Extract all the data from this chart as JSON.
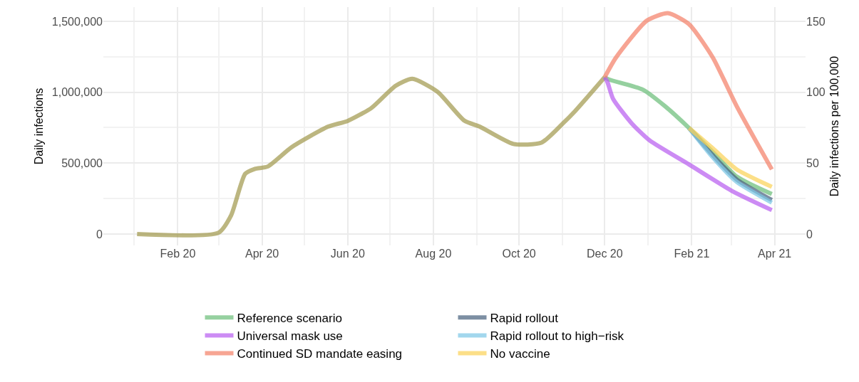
{
  "chart_data": {
    "type": "line",
    "ylabel": "Daily infections",
    "y2label": "Daily infections per 100,000",
    "xlim": [
      "2019-12-10",
      "2021-04-23"
    ],
    "xticks": [
      {
        "value": "2020-02-01",
        "label": "Feb 20"
      },
      {
        "value": "2020-04-01",
        "label": "Apr 20"
      },
      {
        "value": "2020-06-01",
        "label": "Jun 20"
      },
      {
        "value": "2020-08-01",
        "label": "Aug 20"
      },
      {
        "value": "2020-10-01",
        "label": "Oct 20"
      },
      {
        "value": "2020-12-01",
        "label": "Dec 20"
      },
      {
        "value": "2021-02-01",
        "label": "Feb 21"
      },
      {
        "value": "2021-04-01",
        "label": "Apr 21"
      }
    ],
    "ylim": [
      -80000,
      1600000
    ],
    "yticks": [
      {
        "value": 0,
        "label": "0"
      },
      {
        "value": 500000,
        "label": "500,000"
      },
      {
        "value": 1000000,
        "label": "1,000,000"
      },
      {
        "value": 1500000,
        "label": "1,500,000"
      }
    ],
    "y2lim": [
      -8,
      160
    ],
    "y2ticks": [
      0,
      50,
      100,
      150
    ],
    "grid": true,
    "legend": "bottom",
    "line_style": "solid",
    "marker": "none",
    "series": [
      {
        "color": "#a39a50",
        "x": [
          "2020-01-03",
          "2020-03-01",
          "2020-03-10",
          "2020-03-20",
          "2020-03-27",
          "2020-04-05",
          "2020-04-22",
          "2020-05-18",
          "2020-06-01",
          "2020-06-18",
          "2020-07-05",
          "2020-07-17",
          "2020-08-04",
          "2020-08-23",
          "2020-09-03",
          "2020-09-27",
          "2020-10-17",
          "2020-11-01",
          "2020-11-10",
          "2020-12-01"
        ],
        "values": [
          0,
          10000,
          133000,
          425000,
          460000,
          476000,
          612000,
          757000,
          798000,
          890000,
          1045000,
          1095000,
          1003000,
          800000,
          757000,
          635000,
          645000,
          778000,
          868000,
          1106000
        ]
      },
      {
        "name": "Reference scenario",
        "color": "#6dbf7b",
        "x": [
          "2020-12-01",
          "2020-12-04",
          "2020-12-28",
          "2021-01-13",
          "2021-01-30",
          "2021-02-16",
          "2021-03-05",
          "2021-03-30"
        ],
        "values": [
          1106000,
          1090000,
          1019000,
          901000,
          748000,
          578000,
          405000,
          282000
        ]
      },
      {
        "name": "Universal mask use",
        "color": "#b95ff0",
        "x": [
          "2020-12-01",
          "2020-12-03",
          "2020-12-07",
          "2020-12-20",
          "2021-01-02",
          "2021-01-30",
          "2021-03-02",
          "2021-03-30"
        ],
        "values": [
          1106000,
          1070000,
          952000,
          783000,
          660000,
          491000,
          302000,
          169000
        ]
      },
      {
        "name": "Continued SD mandate easing",
        "color": "#f4826a",
        "x": [
          "2020-12-01",
          "2020-12-09",
          "2020-12-31",
          "2021-01-15",
          "2021-01-30",
          "2021-02-16",
          "2021-03-05",
          "2021-03-30"
        ],
        "values": [
          1106000,
          1244000,
          1505000,
          1557000,
          1480000,
          1244000,
          901000,
          456000
        ]
      },
      {
        "name": "Rapid rollout",
        "color": "#4b6480",
        "x": [
          "2021-01-30",
          "2021-02-16",
          "2021-03-05",
          "2021-03-30"
        ],
        "values": [
          748000,
          555000,
          385000,
          240000
        ]
      },
      {
        "name": "Rapid rollout to high−risk",
        "color": "#7ec8e6",
        "x": [
          "2021-01-30",
          "2021-02-16",
          "2021-03-05",
          "2021-03-30"
        ],
        "values": [
          748000,
          540000,
          368000,
          222000
        ]
      },
      {
        "name": "No vaccine",
        "color": "#fbd35a",
        "x": [
          "2021-01-30",
          "2021-02-16",
          "2021-03-05",
          "2021-03-30"
        ],
        "values": [
          748000,
          604000,
          456000,
          333000
        ]
      }
    ]
  }
}
